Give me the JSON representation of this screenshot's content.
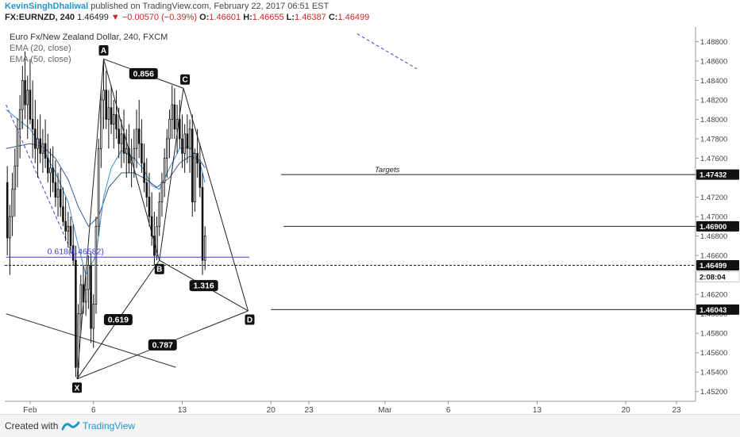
{
  "header": {
    "user": "KevinSinghDhaliwal",
    "published": "published on TradingView.com, February 22, 2017 06:51 EST",
    "symbol": "FX:EURNZD, 240",
    "price": "1.46499",
    "change": "▼ −0.00570 (−0.39%)",
    "open_label": "O:",
    "open": "1.46601",
    "high_label": "H:",
    "high": "1.46655",
    "low_label": "L:",
    "low": "1.46387",
    "close_label": "C:",
    "close": "1.46499"
  },
  "legend": {
    "title": "Euro Fx/New Zealand Dollar, 240, FXCM",
    "ema1": "EMA (20, close)",
    "ema2": "EMA (50, close)"
  },
  "footer": {
    "created": "Created with",
    "brand": "TradingView"
  },
  "colors": {
    "candle": "#111111",
    "ema20": "#3c8ed6",
    "ema50": "#3b5a8c",
    "fib_line": "#3f3fd1",
    "pattern": "#222222",
    "trend_dashed": "#3f3fd1",
    "badge_bg": "#111111",
    "badge_text": "#ffffff"
  },
  "chart_data": {
    "type": "candlestick",
    "ylim": [
      1.451,
      1.4895
    ],
    "y_ticks": [
      "1.48800",
      "1.48600",
      "1.48400",
      "1.48200",
      "1.48000",
      "1.47800",
      "1.47600",
      "1.47200",
      "1.47000",
      "1.46800",
      "1.46600",
      "1.46200",
      "1.46000",
      "1.45800",
      "1.45600",
      "1.45400",
      "1.45200"
    ],
    "y_tick_values": [
      1.488,
      1.486,
      1.484,
      1.482,
      1.48,
      1.478,
      1.476,
      1.472,
      1.47,
      1.468,
      1.466,
      1.462,
      1.46,
      1.458,
      1.456,
      1.454,
      1.452
    ],
    "x_ticks": [
      {
        "label": "Feb",
        "day": 1
      },
      {
        "label": "6",
        "day": 6
      },
      {
        "label": "13",
        "day": 13
      },
      {
        "label": "20",
        "day": 20
      },
      {
        "label": "23",
        "day": 23
      },
      {
        "label": "Mar",
        "day": 29
      },
      {
        "label": "6",
        "day": 34
      },
      {
        "label": "13",
        "day": 41
      },
      {
        "label": "20",
        "day": 48
      },
      {
        "label": "23",
        "day": 52
      }
    ],
    "xlim": [
      -1,
      53.5
    ],
    "candles": [
      [
        -0.8,
        1.4735,
        1.4752,
        1.466,
        1.4678
      ],
      [
        -0.6,
        1.4678,
        1.4712,
        1.464,
        1.47
      ],
      [
        -0.4,
        1.47,
        1.4745,
        1.468,
        1.4728
      ],
      [
        -0.2,
        1.4728,
        1.477,
        1.47,
        1.4752
      ],
      [
        0.0,
        1.4752,
        1.4801,
        1.473,
        1.479
      ],
      [
        0.2,
        1.479,
        1.4825,
        1.476,
        1.481
      ],
      [
        0.4,
        1.481,
        1.4855,
        1.479,
        1.484
      ],
      [
        0.6,
        1.484,
        1.487,
        1.48,
        1.4815
      ],
      [
        0.8,
        1.4815,
        1.4845,
        1.478,
        1.483
      ],
      [
        1.0,
        1.483,
        1.4862,
        1.4795,
        1.48
      ],
      [
        1.2,
        1.48,
        1.484,
        1.476,
        1.479
      ],
      [
        1.4,
        1.479,
        1.482,
        1.4755,
        1.477
      ],
      [
        1.6,
        1.477,
        1.48,
        1.474,
        1.478
      ],
      [
        1.8,
        1.478,
        1.4805,
        1.4755,
        1.4765
      ],
      [
        2.0,
        1.4765,
        1.479,
        1.4745,
        1.4775
      ],
      [
        2.2,
        1.4775,
        1.48,
        1.475,
        1.476
      ],
      [
        2.4,
        1.476,
        1.4785,
        1.4735,
        1.4745
      ],
      [
        2.6,
        1.4745,
        1.477,
        1.472,
        1.475
      ],
      [
        2.8,
        1.475,
        1.4772,
        1.4725,
        1.4735
      ],
      [
        3.0,
        1.4735,
        1.4758,
        1.471,
        1.472
      ],
      [
        3.2,
        1.472,
        1.4745,
        1.47,
        1.4728
      ],
      [
        3.4,
        1.4728,
        1.475,
        1.47,
        1.471
      ],
      [
        3.6,
        1.471,
        1.473,
        1.469,
        1.4695
      ],
      [
        3.8,
        1.4695,
        1.472,
        1.4675,
        1.4685
      ],
      [
        4.0,
        1.4685,
        1.4705,
        1.4668,
        1.469
      ],
      [
        4.2,
        1.469,
        1.47,
        1.4662,
        1.467
      ],
      [
        4.4,
        1.467,
        1.4692,
        1.465,
        1.4655
      ],
      [
        4.6,
        1.4655,
        1.467,
        1.4535,
        1.4545
      ],
      [
        4.8,
        1.4545,
        1.461,
        1.4533,
        1.46
      ],
      [
        5.0,
        1.46,
        1.464,
        1.458,
        1.463
      ],
      [
        5.2,
        1.463,
        1.465,
        1.46,
        1.4612
      ],
      [
        5.4,
        1.4612,
        1.464,
        1.4598,
        1.4625
      ],
      [
        5.6,
        1.4625,
        1.466,
        1.4605,
        1.465
      ],
      [
        5.8,
        1.465,
        1.4662,
        1.457,
        1.4585
      ],
      [
        6.0,
        1.4585,
        1.462,
        1.4565,
        1.461
      ],
      [
        6.2,
        1.461,
        1.47,
        1.46,
        1.469
      ],
      [
        6.4,
        1.469,
        1.478,
        1.468,
        1.477
      ],
      [
        6.6,
        1.477,
        1.483,
        1.475,
        1.482
      ],
      [
        6.8,
        1.482,
        1.4862,
        1.479,
        1.483
      ],
      [
        7.0,
        1.483,
        1.485,
        1.479,
        1.48
      ],
      [
        7.2,
        1.48,
        1.483,
        1.477,
        1.4812
      ],
      [
        7.4,
        1.4812,
        1.4835,
        1.4785,
        1.4795
      ],
      [
        7.6,
        1.4795,
        1.482,
        1.477,
        1.4805
      ],
      [
        7.8,
        1.4805,
        1.483,
        1.478,
        1.479
      ],
      [
        8.0,
        1.479,
        1.4812,
        1.476,
        1.4775
      ],
      [
        8.2,
        1.4775,
        1.48,
        1.475,
        1.4785
      ],
      [
        8.4,
        1.4785,
        1.481,
        1.4755,
        1.4765
      ],
      [
        8.6,
        1.4765,
        1.479,
        1.474,
        1.477
      ],
      [
        8.8,
        1.477,
        1.4795,
        1.4745,
        1.4755
      ],
      [
        9.0,
        1.4755,
        1.478,
        1.473,
        1.476
      ],
      [
        9.2,
        1.476,
        1.479,
        1.474,
        1.477
      ],
      [
        9.4,
        1.477,
        1.481,
        1.475,
        1.479
      ],
      [
        9.6,
        1.479,
        1.482,
        1.476,
        1.4775
      ],
      [
        9.8,
        1.4775,
        1.48,
        1.4745,
        1.4755
      ],
      [
        10.0,
        1.4755,
        1.4775,
        1.4725,
        1.4735
      ],
      [
        10.2,
        1.4735,
        1.476,
        1.471,
        1.472
      ],
      [
        10.4,
        1.472,
        1.4745,
        1.469,
        1.47
      ],
      [
        10.6,
        1.47,
        1.4725,
        1.467,
        1.468
      ],
      [
        10.8,
        1.468,
        1.4705,
        1.465,
        1.466
      ],
      [
        11.0,
        1.466,
        1.47,
        1.4655,
        1.469
      ],
      [
        11.2,
        1.469,
        1.4725,
        1.468,
        1.4715
      ],
      [
        11.4,
        1.4715,
        1.4745,
        1.47,
        1.4735
      ],
      [
        11.6,
        1.4735,
        1.477,
        1.472,
        1.476
      ],
      [
        11.8,
        1.476,
        1.479,
        1.474,
        1.478
      ],
      [
        12.0,
        1.478,
        1.481,
        1.476,
        1.48
      ],
      [
        12.2,
        1.48,
        1.4835,
        1.478,
        1.4815
      ],
      [
        12.4,
        1.4815,
        1.4832,
        1.478,
        1.479
      ],
      [
        12.6,
        1.479,
        1.4815,
        1.4765,
        1.48
      ],
      [
        12.8,
        1.48,
        1.482,
        1.477,
        1.478
      ],
      [
        13.0,
        1.478,
        1.4805,
        1.475,
        1.4765
      ],
      [
        13.2,
        1.4765,
        1.4795,
        1.4745,
        1.4785
      ],
      [
        13.4,
        1.4785,
        1.4805,
        1.4755,
        1.477
      ],
      [
        13.6,
        1.477,
        1.48,
        1.4745,
        1.479
      ],
      [
        13.8,
        1.479,
        1.4805,
        1.47,
        1.4715
      ],
      [
        14.0,
        1.4715,
        1.477,
        1.4705,
        1.4765
      ],
      [
        14.2,
        1.4765,
        1.479,
        1.474,
        1.4755
      ],
      [
        14.4,
        1.4755,
        1.4775,
        1.472,
        1.473
      ],
      [
        14.6,
        1.473,
        1.4745,
        1.464,
        1.4655
      ],
      [
        14.8,
        1.4655,
        1.469,
        1.4645,
        1.468
      ]
    ],
    "ema20": [
      [
        -0.9,
        1.481
      ],
      [
        1,
        1.479
      ],
      [
        2,
        1.477
      ],
      [
        3,
        1.4745
      ],
      [
        4,
        1.4715
      ],
      [
        4.8,
        1.467
      ],
      [
        5.4,
        1.464
      ],
      [
        6.2,
        1.466
      ],
      [
        6.8,
        1.472
      ],
      [
        7.4,
        1.475
      ],
      [
        8.2,
        1.4768
      ],
      [
        9.2,
        1.476
      ],
      [
        10.0,
        1.4748
      ],
      [
        10.6,
        1.4732
      ],
      [
        11.2,
        1.4728
      ],
      [
        12.0,
        1.475
      ],
      [
        12.8,
        1.477
      ],
      [
        13.6,
        1.4772
      ],
      [
        14.4,
        1.4755
      ],
      [
        14.8,
        1.4735
      ]
    ],
    "ema50": [
      [
        -0.9,
        1.477
      ],
      [
        1,
        1.4775
      ],
      [
        2,
        1.4772
      ],
      [
        3,
        1.476
      ],
      [
        4,
        1.4738
      ],
      [
        4.8,
        1.471
      ],
      [
        5.6,
        1.469
      ],
      [
        6.4,
        1.47
      ],
      [
        7.2,
        1.473
      ],
      [
        8.2,
        1.4745
      ],
      [
        9.2,
        1.4745
      ],
      [
        10.2,
        1.4738
      ],
      [
        11.0,
        1.473
      ],
      [
        12.0,
        1.474
      ],
      [
        12.8,
        1.4755
      ],
      [
        13.6,
        1.4762
      ],
      [
        14.4,
        1.4758
      ],
      [
        14.8,
        1.475
      ]
    ],
    "pattern_points": {
      "X": [
        4.7,
        1.4533
      ],
      "A": [
        6.8,
        1.4862
      ],
      "B": [
        11.2,
        1.4655
      ],
      "C": [
        13.1,
        1.4832
      ],
      "D": [
        18.2,
        1.4603
      ]
    },
    "pattern_labels": [
      "X",
      "A",
      "B",
      "C",
      "D"
    ],
    "ratios": [
      {
        "text": "0.856",
        "between": [
          "A",
          "C"
        ]
      },
      {
        "text": "0.619",
        "between": [
          "X",
          "B"
        ]
      },
      {
        "text": "1.316",
        "between": [
          "B",
          "D"
        ]
      },
      {
        "text": "0.787",
        "between": [
          "X",
          "D"
        ]
      }
    ],
    "fib_level": {
      "label": "0.618(1.46582)",
      "value": 1.46582,
      "x_start": -0.9,
      "x_end": 18.3
    },
    "current_price": {
      "value": 1.46499,
      "label": "1.46499",
      "timer": "2:08:04"
    },
    "targets": {
      "title": "Targets",
      "levels": [
        {
          "value": 1.47432,
          "label": "1.47432",
          "x_start": 20.8
        },
        {
          "value": 1.469,
          "label": "1.46900",
          "x_start": 21.0
        },
        {
          "value": 1.46043,
          "label": "1.46043",
          "x_start": 20.0
        }
      ]
    },
    "trendlines": [
      {
        "style": "dashed",
        "from": [
          -0.9,
          1.4815
        ],
        "to": [
          4.4,
          1.466
        ]
      },
      {
        "style": "dashed",
        "from": [
          26.8,
          1.4888
        ],
        "to": [
          31.5,
          1.4852
        ]
      },
      {
        "style": "solid",
        "from": [
          -0.9,
          1.46
        ],
        "to": [
          12.5,
          1.4545
        ]
      }
    ]
  }
}
